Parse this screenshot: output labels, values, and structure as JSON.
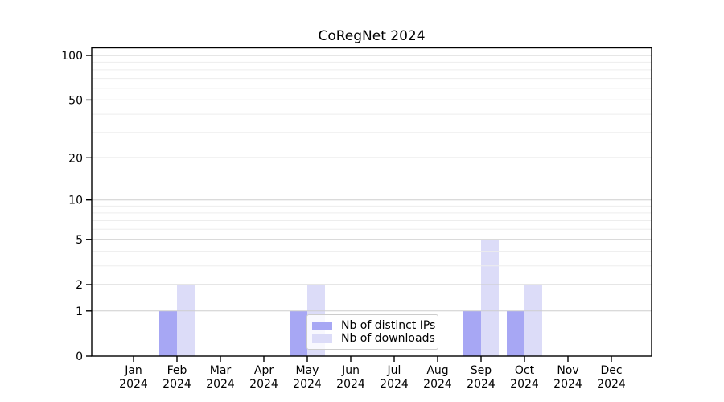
{
  "title": "CoRegNet 2024",
  "colors": {
    "distinct_ips_bar": "#a7a7f4",
    "downloads_bar": "#dcdcf8",
    "grid_major": "#cdcdcd",
    "grid_minor": "#ededed",
    "spine": "#000000",
    "legend_border": "#cccccc",
    "text": "#000000"
  },
  "legend": {
    "items": [
      {
        "label": "Nb of distinct IPs",
        "color": "#a7a7f4"
      },
      {
        "label": "Nb of downloads",
        "color": "#dcdcf8"
      }
    ]
  },
  "chart_data": {
    "type": "bar",
    "title": "CoRegNet 2024",
    "categories": [
      "Jan 2024",
      "Feb 2024",
      "Mar 2024",
      "Apr 2024",
      "May 2024",
      "Jun 2024",
      "Jul 2024",
      "Aug 2024",
      "Sep 2024",
      "Oct 2024",
      "Nov 2024",
      "Dec 2024"
    ],
    "series": [
      {
        "name": "Nb of distinct IPs",
        "color": "#a7a7f4",
        "values": [
          0,
          1,
          0,
          0,
          1,
          0,
          0,
          0,
          1,
          1,
          0,
          0
        ]
      },
      {
        "name": "Nb of downloads",
        "color": "#dcdcf8",
        "values": [
          0,
          2,
          0,
          0,
          2,
          0,
          0,
          0,
          5,
          2,
          0,
          0
        ]
      }
    ],
    "xlabel": "",
    "ylabel": "",
    "yscale": "log1p",
    "ylim": [
      0,
      113
    ],
    "y_ticks": [
      0,
      1,
      2,
      5,
      10,
      20,
      50,
      100
    ],
    "y_minor_gridlines": [
      3,
      4,
      6,
      7,
      8,
      9,
      30,
      40,
      60,
      70,
      80,
      90
    ],
    "grid": "on",
    "legend_position": "lower-center-inside"
  }
}
